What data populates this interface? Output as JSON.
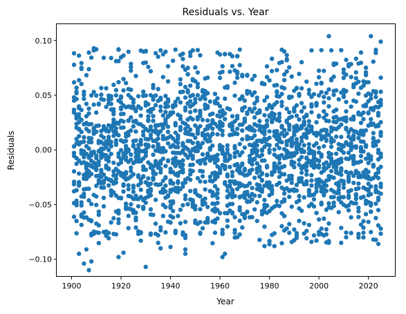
{
  "chart_data": {
    "type": "scatter",
    "title": "Residuals vs. Year",
    "xlabel": "Year",
    "ylabel": "Residuals",
    "xlim": [
      1894,
      2031
    ],
    "ylim": [
      -0.116,
      0.115
    ],
    "xticks": [
      1900,
      1920,
      1940,
      1960,
      1980,
      2000,
      2020
    ],
    "yticks": [
      -0.1,
      -0.05,
      0.0,
      0.05,
      0.1
    ],
    "xtick_labels": [
      "1900",
      "1920",
      "1940",
      "1960",
      "1980",
      "2000",
      "2020"
    ],
    "ytick_labels": [
      "−0.10",
      "−0.05",
      "0.00",
      "0.05",
      "0.10"
    ],
    "grid": false,
    "marker_color": "#1f77b4",
    "x_range": [
      1901,
      2025
    ],
    "residual_scale": 0.04,
    "random_seed": 7,
    "points_per_year": 18,
    "points": [
      [
        1902,
        -0.065
      ],
      [
        1903,
        -0.095
      ],
      [
        1905,
        -0.104
      ],
      [
        1906,
        -0.091
      ],
      [
        1907,
        -0.11
      ],
      [
        1908,
        -0.102
      ],
      [
        1919,
        -0.098
      ],
      [
        1921,
        -0.094
      ],
      [
        1928,
        -0.083
      ],
      [
        1930,
        -0.107
      ],
      [
        1935,
        -0.085
      ],
      [
        1936,
        -0.09
      ],
      [
        1946,
        -0.091
      ],
      [
        1946,
        -0.095
      ],
      [
        1961,
        -0.098
      ],
      [
        1962,
        -0.095
      ],
      [
        1978,
        -0.088
      ],
      [
        1982,
        -0.088
      ],
      [
        2009,
        -0.085
      ],
      [
        2018,
        -0.08
      ],
      [
        2022,
        -0.082
      ],
      [
        2024,
        -0.086
      ],
      [
        1907,
        0.089
      ],
      [
        1909,
        0.093
      ],
      [
        1910,
        0.092
      ],
      [
        1919,
        0.092
      ],
      [
        1930,
        0.09
      ],
      [
        1945,
        0.088
      ],
      [
        1948,
        0.086
      ],
      [
        1987,
        0.082
      ],
      [
        1997,
        0.091
      ],
      [
        2004,
        0.104
      ],
      [
        2021,
        0.104
      ],
      [
        2025,
        0.099
      ],
      [
        2006,
        0.079
      ],
      [
        2016,
        0.079
      ]
    ]
  }
}
